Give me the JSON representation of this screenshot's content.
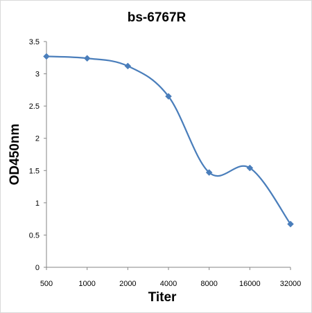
{
  "chart_data": {
    "type": "line",
    "title": "bs-6767R",
    "xlabel": "Titer",
    "ylabel": "OD450nm",
    "categories": [
      "500",
      "1000",
      "2000",
      "4000",
      "8000",
      "16000",
      "32000"
    ],
    "series": [
      {
        "values": [
          3.27,
          3.24,
          3.12,
          2.65,
          1.47,
          1.54,
          0.67
        ]
      }
    ],
    "ylim": [
      0,
      3.5
    ],
    "yticks": [
      "0",
      "0.5",
      "1",
      "1.5",
      "2",
      "2.5",
      "3",
      "3.5"
    ],
    "grid": false,
    "smooth": true,
    "marker": "diamond",
    "color": "#4a7ebb"
  }
}
